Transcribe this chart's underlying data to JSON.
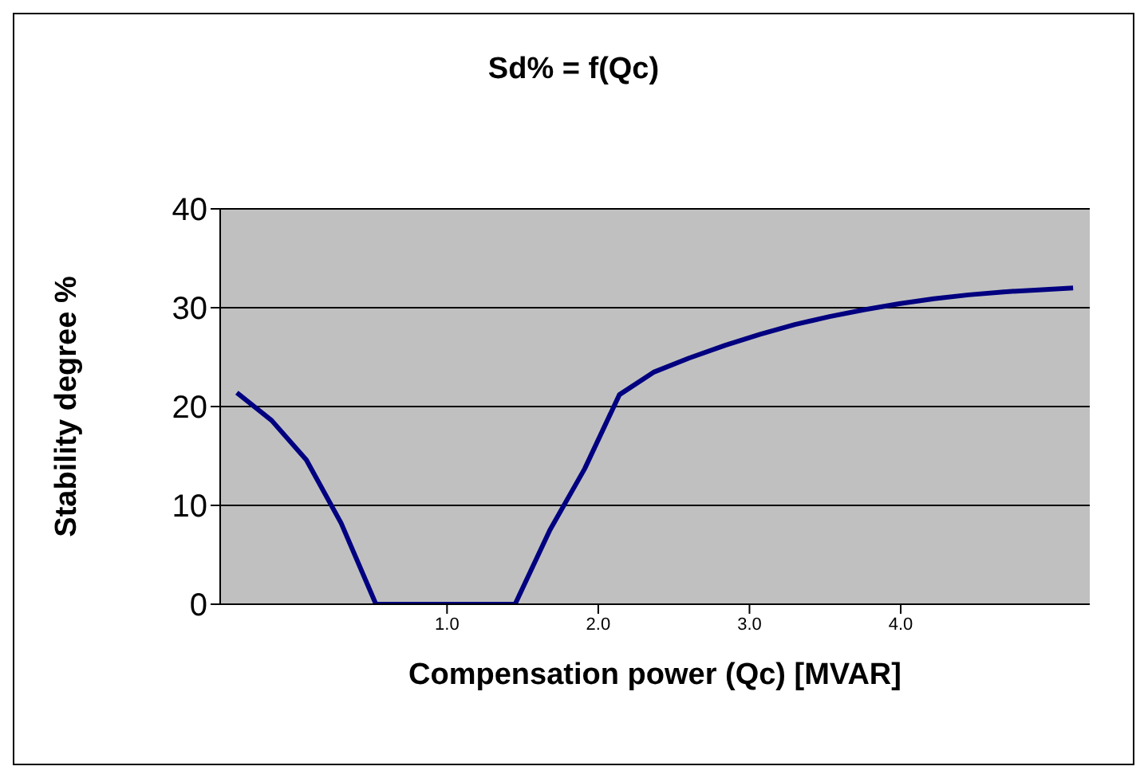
{
  "chart_data": {
    "type": "line",
    "title": "Sd% = f(Qc)",
    "xlabel": "Compensation power (Qc) [MVAR]",
    "ylabel": "Stability degree %",
    "x": [
      -0.39,
      -0.16,
      0.07,
      0.3,
      0.53,
      0.76,
      0.99,
      1.22,
      1.45,
      1.68,
      1.91,
      2.14,
      2.37,
      2.6,
      2.84,
      3.07,
      3.3,
      3.53,
      3.76,
      3.99,
      4.22,
      4.45,
      4.68,
      4.91,
      5.14
    ],
    "series": [
      {
        "color": "#000080",
        "values": [
          21.4,
          18.6,
          14.6,
          8.2,
          0,
          0,
          0,
          0,
          0,
          7.5,
          13.7,
          21.2,
          23.5,
          24.9,
          26.2,
          27.3,
          28.3,
          29.1,
          29.8,
          30.4,
          30.9,
          31.3,
          31.6,
          31.8,
          32.0
        ]
      }
    ],
    "xlim": [
      -0.5,
      5.25
    ],
    "xticks": [
      {
        "value": 1,
        "label": "1.0"
      },
      {
        "value": 2,
        "label": "2.0"
      },
      {
        "value": 3,
        "label": "3.0"
      },
      {
        "value": 4,
        "label": "4.0"
      }
    ],
    "ylim": [
      0,
      40
    ],
    "yticks": [
      0,
      10,
      20,
      30,
      40
    ],
    "grid": "y",
    "legend": false,
    "marker": "none",
    "line_style": "solid"
  }
}
